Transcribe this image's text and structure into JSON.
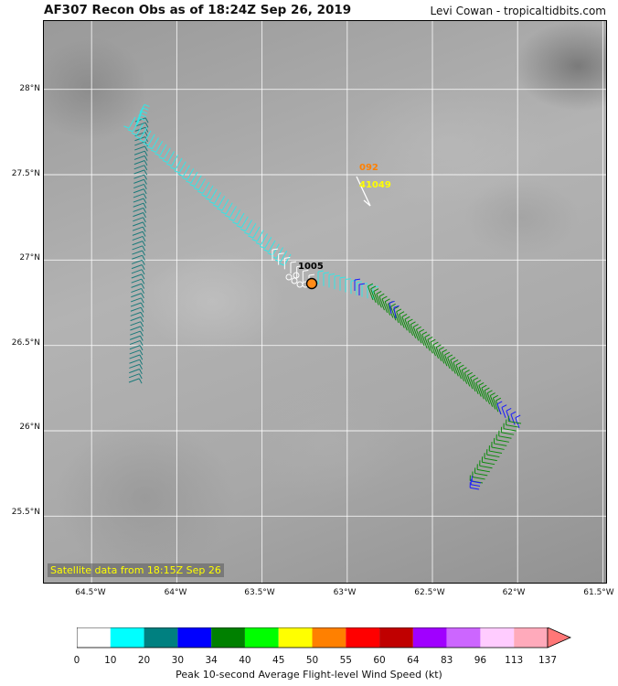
{
  "title": "AF307 Recon Obs as of 18:24Z Sep 26, 2019",
  "credit": "Levi Cowan - tropicaltidbits.com",
  "satellite_label": "Satellite data from 18:15Z Sep 26",
  "map": {
    "lon_labels": [
      "64.5°W",
      "64°W",
      "63.5°W",
      "63°W",
      "62.5°W",
      "62°W",
      "61.5°W"
    ],
    "lat_labels": [
      "28°N",
      "27.5°N",
      "27°N",
      "26.5°N",
      "26°N",
      "25.5°N"
    ],
    "lon_values": [
      -64.5,
      -64.0,
      -63.5,
      -63.0,
      -62.5,
      -62.0,
      -61.5
    ],
    "lat_values": [
      28.0,
      27.5,
      27.0,
      26.5,
      26.0,
      25.5
    ],
    "extent": {
      "lon_min": -64.78,
      "lon_max": -61.47,
      "lat_min": 25.1,
      "lat_max": 28.4
    }
  },
  "annotations": {
    "pressure_center": "1005",
    "dropsonde_a": "092",
    "dropsonde_b": "41049",
    "dropsonde_a_color": "#ff8000",
    "dropsonde_b_color": "#ffff00"
  },
  "colorbar": {
    "label": "Peak 10-second Average Flight-level Wind Speed (kt)",
    "ticks": [
      "0",
      "10",
      "20",
      "30",
      "34",
      "40",
      "45",
      "50",
      "55",
      "60",
      "64",
      "83",
      "96",
      "113",
      "137"
    ],
    "colors": [
      "#ffffff",
      "#00ffff",
      "#008080",
      "#0000ff",
      "#008000",
      "#00ff00",
      "#ffff00",
      "#ff8000",
      "#ff0000",
      "#c00000",
      "#a000ff",
      "#cc66ff",
      "#ffccff",
      "#ffaabb"
    ]
  },
  "track_colors": {
    "cyan": "#33e6e6",
    "teal": "#1a7a7a",
    "green": "#0a8a0a",
    "blue": "#1a1aff",
    "white": "#ffffff",
    "center": "#ff8c1a"
  }
}
